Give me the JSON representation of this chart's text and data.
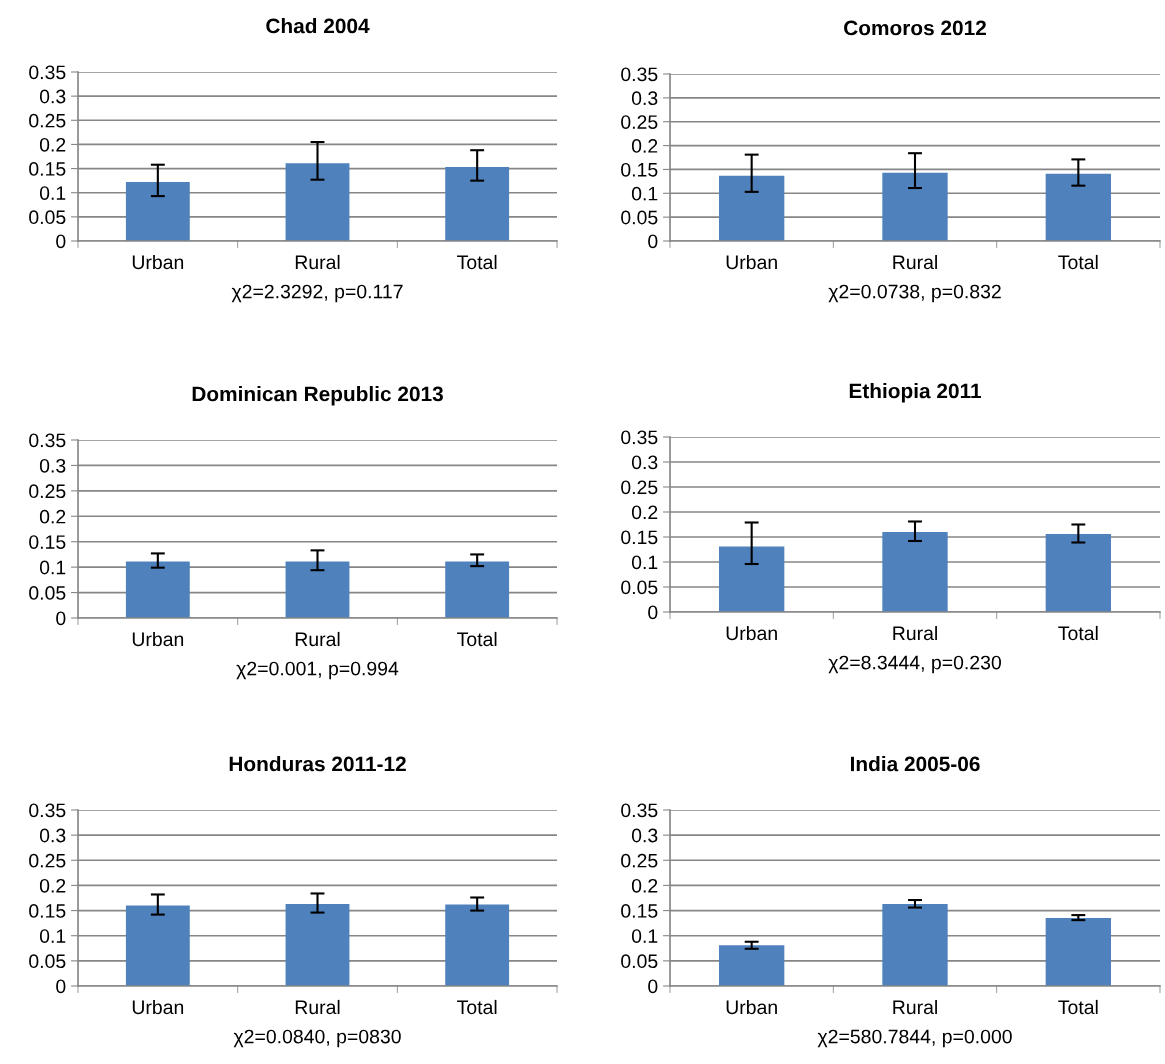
{
  "chart_data": [
    {
      "type": "bar",
      "title": "Chad 2004",
      "xlabel": "χ2=2.3292, p=0.117",
      "categories": [
        "Urban",
        "Rural",
        "Total"
      ],
      "values": [
        0.122,
        0.161,
        0.153
      ],
      "errors": [
        [
          0.093,
          0.158
        ],
        [
          0.127,
          0.205
        ],
        [
          0.125,
          0.188
        ]
      ],
      "color": "#4f81bd",
      "ylim": [
        0,
        0.35
      ],
      "yticks": [
        0,
        0.05,
        0.1,
        0.15,
        0.2,
        0.25,
        0.3,
        0.35
      ],
      "grid": "y"
    },
    {
      "type": "bar",
      "title": "Comoros 2012",
      "xlabel": "χ2=0.0738, p=0.832",
      "categories": [
        "Urban",
        "Rural",
        "Total"
      ],
      "values": [
        0.137,
        0.143,
        0.141
      ],
      "errors": [
        [
          0.103,
          0.181
        ],
        [
          0.111,
          0.184
        ],
        [
          0.116,
          0.171
        ]
      ],
      "color": "#4f81bd",
      "ylim": [
        0,
        0.35
      ],
      "yticks": [
        0,
        0.05,
        0.1,
        0.15,
        0.2,
        0.25,
        0.3,
        0.35
      ],
      "grid": "y"
    },
    {
      "type": "bar",
      "title": "Dominican Republic 2013",
      "xlabel": "χ2=0.001, p=0.994",
      "categories": [
        "Urban",
        "Rural",
        "Total"
      ],
      "values": [
        0.111,
        0.111,
        0.111
      ],
      "errors": [
        [
          0.099,
          0.127
        ],
        [
          0.094,
          0.133
        ],
        [
          0.102,
          0.125
        ]
      ],
      "color": "#4f81bd",
      "ylim": [
        0,
        0.35
      ],
      "yticks": [
        0,
        0.05,
        0.1,
        0.15,
        0.2,
        0.25,
        0.3,
        0.35
      ],
      "grid": "y"
    },
    {
      "type": "bar",
      "title": "Ethiopia 2011",
      "xlabel": "χ2=8.3444, p=0.230",
      "categories": [
        "Urban",
        "Rural",
        "Total"
      ],
      "values": [
        0.131,
        0.16,
        0.156
      ],
      "errors": [
        [
          0.096,
          0.179
        ],
        [
          0.142,
          0.181
        ],
        [
          0.139,
          0.175
        ]
      ],
      "color": "#4f81bd",
      "ylim": [
        0,
        0.35
      ],
      "yticks": [
        0,
        0.05,
        0.1,
        0.15,
        0.2,
        0.25,
        0.3,
        0.35
      ],
      "grid": "y"
    },
    {
      "type": "bar",
      "title": "Honduras 2011-12",
      "xlabel": "χ2=0.0840, p=0830",
      "categories": [
        "Urban",
        "Rural",
        "Total"
      ],
      "values": [
        0.16,
        0.163,
        0.162
      ],
      "errors": [
        [
          0.142,
          0.182
        ],
        [
          0.146,
          0.184
        ],
        [
          0.15,
          0.176
        ]
      ],
      "color": "#4f81bd",
      "ylim": [
        0,
        0.35
      ],
      "yticks": [
        0,
        0.05,
        0.1,
        0.15,
        0.2,
        0.25,
        0.3,
        0.35
      ],
      "grid": "y"
    },
    {
      "type": "bar",
      "title": "India 2005-06",
      "xlabel": "χ2=580.7844, p=0.000",
      "categories": [
        "Urban",
        "Rural",
        "Total"
      ],
      "values": [
        0.081,
        0.163,
        0.135
      ],
      "errors": [
        [
          0.074,
          0.088
        ],
        [
          0.156,
          0.171
        ],
        [
          0.131,
          0.141
        ]
      ],
      "color": "#4f81bd",
      "ylim": [
        0,
        0.35
      ],
      "yticks": [
        0,
        0.05,
        0.1,
        0.15,
        0.2,
        0.25,
        0.3,
        0.35
      ],
      "grid": "y"
    }
  ]
}
